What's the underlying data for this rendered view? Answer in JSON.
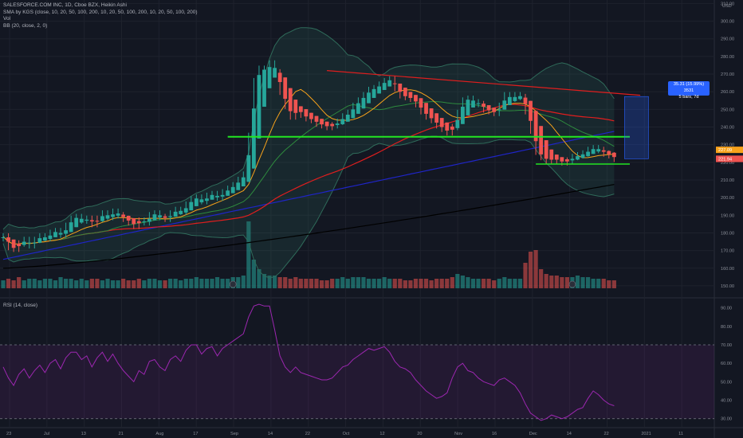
{
  "legend": {
    "title": "SALESFORCE.COM INC, 1D, Cboe BZX, Heikin Ashi",
    "sma": "SMA by KGS (close, 10, 20, 50, 100, 200, 10, 20, 50, 100, 200, 10, 20, 50, 100, 200)",
    "vol": "Vol",
    "bb": "BB (20, close, 2, 0)",
    "rsi": "RSI (14, close)"
  },
  "measure": {
    "line1": "35.31 (15.99%) 3531",
    "line2": "5 bars, 7d"
  },
  "colors": {
    "background": "#131722",
    "up": "#26a69a",
    "down": "#ef5350",
    "sma10": "#f7a21b",
    "sma20": "#2e8b3e",
    "sma50": "#e01e1e",
    "sma100": "#1f25c8",
    "sma200": "#000000",
    "bb": "#2f6b5a",
    "support": "#22e622",
    "rsi": "#9c27b0"
  },
  "chart_data": [
    {
      "type": "candlestick",
      "title": "SALESFORCE.COM INC, 1D, Cboe BZX, Heikin Ashi",
      "price_axis": {
        "unit": "USD",
        "range": [
          145,
          312
        ],
        "ticks": [
          "310.00",
          "300.00",
          "290.00",
          "280.00",
          "270.00",
          "260.00",
          "250.00",
          "240.00",
          "230.00",
          "220.00",
          "210.00",
          "200.00",
          "190.00",
          "180.00",
          "170.00",
          "160.00",
          "150.00"
        ]
      },
      "time_axis": {
        "labels": [
          "23",
          "Jul",
          "13",
          "21",
          "Aug",
          "17",
          "Sep",
          "14",
          "22",
          "Oct",
          "12",
          "20",
          "Nov",
          "16",
          "Dec",
          "14",
          "22",
          "2021",
          "11"
        ]
      },
      "price_tags": [
        {
          "value": 227.09,
          "label": "227.09",
          "color": "#f7a21b"
        },
        {
          "value": 222.02,
          "label": "222.02",
          "color": "#ef5350"
        },
        {
          "value": 221.94,
          "label": "221.94",
          "color": "#ef5350"
        }
      ],
      "annotations": {
        "support_upper": 234.5,
        "support_lower": 219,
        "resistance_start": 272,
        "resistance_end": 258,
        "measure_from": 222,
        "measure_to": 257.3,
        "measure_label": "35.31 (15.99%) 3531, 5 bars, 7d"
      },
      "close_values": [
        178,
        172,
        171,
        174,
        176,
        173,
        176,
        178,
        177,
        180,
        181,
        179,
        184,
        188,
        189,
        187,
        188,
        185,
        188,
        191,
        189,
        192,
        190,
        188,
        186,
        184,
        187,
        186,
        190,
        191,
        189,
        188,
        191,
        193,
        192,
        196,
        199,
        200,
        198,
        201,
        202,
        200,
        203,
        205,
        207,
        210,
        213,
        235,
        266,
        273,
        272,
        276,
        271,
        260,
        252,
        246,
        250,
        247,
        245,
        244,
        242,
        241,
        240,
        241,
        243,
        246,
        248,
        252,
        255,
        258,
        261,
        262,
        264,
        266,
        267,
        262,
        258,
        257,
        256,
        253,
        249,
        246,
        244,
        241,
        239,
        237,
        240,
        248,
        255,
        256,
        254,
        253,
        250,
        249,
        248,
        252,
        258,
        256,
        258,
        257,
        249,
        238,
        226,
        223,
        221,
        222,
        221,
        220,
        221,
        223,
        224,
        225,
        227,
        228,
        227,
        225,
        224,
        222
      ],
      "volume_range": [
        0,
        40000000
      ],
      "volume_values": [
        5,
        6,
        5,
        7,
        5,
        6,
        6,
        5,
        6,
        6,
        5,
        7,
        6,
        6,
        5,
        6,
        5,
        6,
        6,
        5,
        6,
        5,
        5,
        6,
        5,
        5,
        6,
        5,
        6,
        6,
        5,
        5,
        6,
        6,
        5,
        6,
        6,
        7,
        6,
        6,
        6,
        7,
        6,
        6,
        7,
        7,
        8,
        42,
        18,
        12,
        9,
        8,
        8,
        7,
        7,
        6,
        7,
        6,
        6,
        6,
        6,
        5,
        5,
        6,
        6,
        7,
        6,
        7,
        7,
        7,
        6,
        6,
        6,
        7,
        6,
        6,
        6,
        5,
        5,
        6,
        6,
        6,
        5,
        6,
        6,
        6,
        7,
        9,
        8,
        7,
        6,
        6,
        6,
        6,
        5,
        6,
        7,
        6,
        6,
        6,
        16,
        23,
        24,
        12,
        9,
        8,
        8,
        7,
        7,
        7,
        8,
        7,
        7,
        6,
        6,
        6,
        5,
        5
      ]
    },
    {
      "type": "line",
      "title": "RSI (14, close)",
      "y_axis": {
        "range": [
          26,
          95
        ],
        "ticks": [
          "90.00",
          "80.00",
          "70.00",
          "60.00",
          "50.00",
          "40.00",
          "30.00"
        ],
        "bands": [
          30,
          70
        ]
      },
      "values": [
        58,
        52,
        48,
        54,
        57,
        52,
        56,
        59,
        55,
        60,
        62,
        57,
        63,
        66,
        66,
        62,
        64,
        58,
        63,
        66,
        61,
        65,
        60,
        56,
        53,
        50,
        56,
        54,
        61,
        62,
        58,
        56,
        62,
        64,
        61,
        67,
        70,
        70,
        65,
        68,
        69,
        64,
        68,
        70,
        72,
        74,
        76,
        85,
        91,
        92,
        91,
        91,
        78,
        64,
        58,
        55,
        58,
        55,
        54,
        53,
        52,
        51,
        51,
        52,
        55,
        58,
        59,
        62,
        64,
        66,
        68,
        67,
        68,
        69,
        66,
        61,
        58,
        57,
        55,
        51,
        48,
        45,
        43,
        41,
        42,
        44,
        52,
        58,
        60,
        56,
        55,
        52,
        50,
        49,
        48,
        51,
        52,
        50,
        48,
        44,
        38,
        33,
        31,
        29,
        30,
        32,
        31,
        30,
        31,
        33,
        35,
        36,
        41,
        45,
        43,
        40,
        38,
        37
      ]
    }
  ]
}
